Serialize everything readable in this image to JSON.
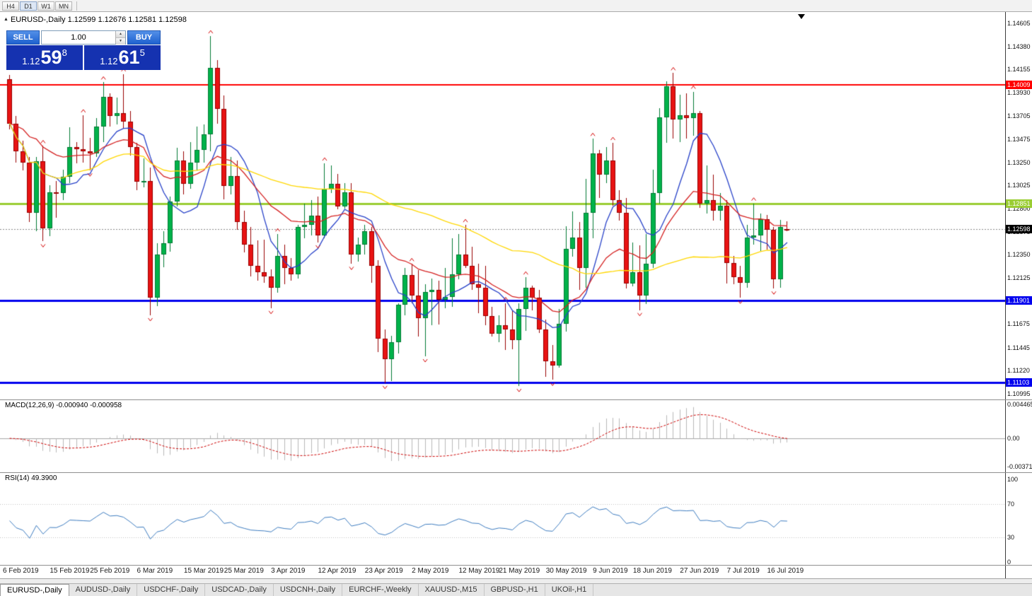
{
  "toolbar": {
    "timeframes": [
      "H4",
      "D1",
      "W1",
      "MN"
    ],
    "active": "D1"
  },
  "header": {
    "symbol": "EURUSD-,Daily",
    "ohlc_text": "1.12599 1.12676 1.12581 1.12598"
  },
  "icons": {
    "spinner_up": "▲",
    "spinner_down": "▼",
    "chart_marker": "▲"
  },
  "trade_panel": {
    "sell_label": "SELL",
    "buy_label": "BUY",
    "volume": "1.00",
    "sell_price": {
      "prefix": "1.12",
      "big": "59",
      "sup": "8"
    },
    "buy_price": {
      "prefix": "1.12",
      "big": "61",
      "sup": "5"
    }
  },
  "tabs": {
    "active_index": 0,
    "items": [
      "EURUSD-,Daily",
      "AUDUSD-,Daily",
      "USDCHF-,Daily",
      "USDCAD-,Daily",
      "USDCNH-,Daily",
      "EURCHF-,Weekly",
      "XAUUSD-,M15",
      "GBPUSD-,H1",
      "UKOil-,H1"
    ]
  },
  "colors": {
    "candle_up": "#00b24a",
    "candle_up_border": "#007a33",
    "candle_down": "#e81313",
    "candle_down_border": "#990000",
    "macd_hist": "#b9b9b9",
    "macd_signal": "#cc0000",
    "rsi_line": "#3c7bbf",
    "trade_button_blue": "#1e61cf",
    "trade_price_navy": "#1532b0"
  },
  "chart_data": {
    "type": "candlestick",
    "symbol": "EURUSD-",
    "timeframe": "Daily",
    "title": "EURUSD-,Daily",
    "current_bid": "1.12598",
    "y_range": [
      1.10995,
      1.14605
    ],
    "y_axis_ticks": [
      "1.14605",
      "1.14380",
      "1.14155",
      "1.13930",
      "1.13705",
      "1.13475",
      "1.13250",
      "1.13025",
      "1.12800",
      "1.12575",
      "1.12350",
      "1.12125",
      "1.11900",
      "1.11675",
      "1.11445",
      "1.11220",
      "1.10995"
    ],
    "x_axis_labels": [
      {
        "label": "6 Feb 2019",
        "i": 0
      },
      {
        "label": "15 Feb 2019",
        "i": 7
      },
      {
        "label": "25 Feb 2019",
        "i": 13
      },
      {
        "label": "6 Mar 2019",
        "i": 20
      },
      {
        "label": "15 Mar 2019",
        "i": 27
      },
      {
        "label": "25 Mar 2019",
        "i": 33
      },
      {
        "label": "3 Apr 2019",
        "i": 40
      },
      {
        "label": "12 Apr 2019",
        "i": 47
      },
      {
        "label": "23 Apr 2019",
        "i": 54
      },
      {
        "label": "2 May 2019",
        "i": 61
      },
      {
        "label": "12 May 2019",
        "i": 68
      },
      {
        "label": "21 May 2019",
        "i": 74
      },
      {
        "label": "30 May 2019",
        "i": 81
      },
      {
        "label": "9 Jun 2019",
        "i": 88
      },
      {
        "label": "18 Jun 2019",
        "i": 94
      },
      {
        "label": "27 Jun 2019",
        "i": 101
      },
      {
        "label": "7 Jul 2019",
        "i": 108
      },
      {
        "label": "16 Jul 2019",
        "i": 114
      }
    ],
    "horizontal_levels": [
      {
        "value": 1.14009,
        "label": "1.14009",
        "color": "#ff0000",
        "width": 2,
        "style": "solid"
      },
      {
        "value": 1.12851,
        "label": "1.12851",
        "color": "#9acd32",
        "width": 3,
        "style": "solid"
      },
      {
        "value": 1.12598,
        "label": "1.12598",
        "color": "#888888",
        "width": 1,
        "style": "dot",
        "label_bg": "#000000"
      },
      {
        "value": 1.11901,
        "label": "1.11901",
        "color": "#0000ee",
        "width": 3,
        "style": "solid"
      },
      {
        "value": 1.11103,
        "label": "1.11103",
        "color": "#0000ee",
        "width": 3,
        "style": "solid"
      }
    ],
    "moving_averages": [
      {
        "method": "sma",
        "period": 8,
        "color": "#2741c8"
      },
      {
        "method": "ema",
        "period": 21,
        "color": "#d42020"
      },
      {
        "method": "sma",
        "period": 55,
        "color": "#ffd700"
      }
    ],
    "fractals_color": "#d40000",
    "indicators": [
      {
        "name": "MACD",
        "params": [
          12,
          26,
          9
        ],
        "label": "MACD(12,26,9) -0.000940 -0.000958",
        "scale": [
          "0.004465",
          "0.00",
          "-0.003715"
        ]
      },
      {
        "name": "RSI",
        "params": [
          14
        ],
        "label": "RSI(14) 49.3900",
        "scale": [
          "100",
          "70",
          "30",
          "0"
        ],
        "bands": [
          70,
          30
        ]
      }
    ],
    "ohlc": [
      [
        1.1406,
        1.141,
        1.1357,
        1.1363
      ],
      [
        1.1363,
        1.137,
        1.1325,
        1.1336
      ],
      [
        1.1336,
        1.1346,
        1.1317,
        1.1325
      ],
      [
        1.1325,
        1.133,
        1.1267,
        1.1276
      ],
      [
        1.1276,
        1.133,
        1.1258,
        1.1326
      ],
      [
        1.1326,
        1.1341,
        1.1248,
        1.1261
      ],
      [
        1.1261,
        1.1303,
        1.1253,
        1.1296
      ],
      [
        1.1296,
        1.1307,
        1.1271,
        1.1295
      ],
      [
        1.1295,
        1.1318,
        1.1288,
        1.1311
      ],
      [
        1.1311,
        1.1359,
        1.1305,
        1.134
      ],
      [
        1.134,
        1.1345,
        1.1324,
        1.1338
      ],
      [
        1.1338,
        1.1371,
        1.1325,
        1.1336
      ],
      [
        1.1336,
        1.1349,
        1.1317,
        1.1334
      ],
      [
        1.1334,
        1.1368,
        1.133,
        1.136
      ],
      [
        1.136,
        1.1403,
        1.1345,
        1.1389
      ],
      [
        1.1389,
        1.1392,
        1.136,
        1.137
      ],
      [
        1.137,
        1.1388,
        1.1362,
        1.1373
      ],
      [
        1.1373,
        1.1411,
        1.1358,
        1.1365
      ],
      [
        1.1365,
        1.1375,
        1.1332,
        1.134
      ],
      [
        1.134,
        1.1344,
        1.1298,
        1.1306
      ],
      [
        1.1306,
        1.1329,
        1.1301,
        1.1307
      ],
      [
        1.1307,
        1.132,
        1.1176,
        1.1193
      ],
      [
        1.1193,
        1.1246,
        1.1185,
        1.1235
      ],
      [
        1.1235,
        1.1258,
        1.1223,
        1.1246
      ],
      [
        1.1246,
        1.1292,
        1.1238,
        1.1287
      ],
      [
        1.1287,
        1.1339,
        1.1282,
        1.1327
      ],
      [
        1.1327,
        1.1336,
        1.1294,
        1.1304
      ],
      [
        1.1304,
        1.1345,
        1.1299,
        1.1325
      ],
      [
        1.1325,
        1.136,
        1.1317,
        1.1337
      ],
      [
        1.1337,
        1.1362,
        1.1325,
        1.1352
      ],
      [
        1.1352,
        1.1448,
        1.1336,
        1.1417
      ],
      [
        1.1417,
        1.1425,
        1.1363,
        1.1377
      ],
      [
        1.1377,
        1.139,
        1.1289,
        1.1302
      ],
      [
        1.1302,
        1.133,
        1.1294,
        1.1312
      ],
      [
        1.1312,
        1.1327,
        1.1259,
        1.1267
      ],
      [
        1.1267,
        1.1278,
        1.1237,
        1.1245
      ],
      [
        1.1245,
        1.1262,
        1.1214,
        1.1224
      ],
      [
        1.1224,
        1.1249,
        1.121,
        1.1218
      ],
      [
        1.1218,
        1.125,
        1.1208,
        1.1214
      ],
      [
        1.1214,
        1.1221,
        1.1183,
        1.1203
      ],
      [
        1.1203,
        1.1255,
        1.1198,
        1.1234
      ],
      [
        1.1234,
        1.1245,
        1.1206,
        1.1222
      ],
      [
        1.1222,
        1.1232,
        1.121,
        1.1216
      ],
      [
        1.1216,
        1.1264,
        1.1212,
        1.1262
      ],
      [
        1.1262,
        1.1285,
        1.1251,
        1.1264
      ],
      [
        1.1264,
        1.1288,
        1.1254,
        1.1273
      ],
      [
        1.1273,
        1.1292,
        1.1247,
        1.1254
      ],
      [
        1.1254,
        1.1324,
        1.1251,
        1.1299
      ],
      [
        1.1299,
        1.1322,
        1.1295,
        1.1304
      ],
      [
        1.1304,
        1.1314,
        1.1279,
        1.1282
      ],
      [
        1.1282,
        1.1305,
        1.128,
        1.1296
      ],
      [
        1.1296,
        1.1305,
        1.1226,
        1.1235
      ],
      [
        1.1235,
        1.1252,
        1.1228,
        1.1245
      ],
      [
        1.1245,
        1.1264,
        1.1235,
        1.1258
      ],
      [
        1.1258,
        1.1262,
        1.1208,
        1.1224
      ],
      [
        1.1224,
        1.123,
        1.114,
        1.1153
      ],
      [
        1.1153,
        1.1162,
        1.111,
        1.1133
      ],
      [
        1.1133,
        1.1156,
        1.1112,
        1.115
      ],
      [
        1.115,
        1.1188,
        1.1139,
        1.1186
      ],
      [
        1.1186,
        1.1222,
        1.1176,
        1.1215
      ],
      [
        1.1215,
        1.1226,
        1.1188,
        1.1195
      ],
      [
        1.1195,
        1.122,
        1.1155,
        1.1173
      ],
      [
        1.1173,
        1.1206,
        1.1136,
        1.1199
      ],
      [
        1.1199,
        1.1212,
        1.1166,
        1.1201
      ],
      [
        1.1201,
        1.121,
        1.1167,
        1.1191
      ],
      [
        1.1191,
        1.1222,
        1.1183,
        1.1194
      ],
      [
        1.1194,
        1.1251,
        1.1184,
        1.1216
      ],
      [
        1.1216,
        1.1255,
        1.1211,
        1.1235
      ],
      [
        1.1235,
        1.1264,
        1.1222,
        1.1224
      ],
      [
        1.1224,
        1.1243,
        1.1201,
        1.1206
      ],
      [
        1.1206,
        1.1226,
        1.1178,
        1.1203
      ],
      [
        1.1203,
        1.1224,
        1.1166,
        1.1175
      ],
      [
        1.1175,
        1.1184,
        1.1155,
        1.1158
      ],
      [
        1.1158,
        1.1176,
        1.115,
        1.1166
      ],
      [
        1.1166,
        1.1188,
        1.1142,
        1.1162
      ],
      [
        1.1162,
        1.118,
        1.1143,
        1.1152
      ],
      [
        1.1152,
        1.1188,
        1.1107,
        1.1182
      ],
      [
        1.1182,
        1.1213,
        1.1161,
        1.1203
      ],
      [
        1.1203,
        1.1205,
        1.1181,
        1.1193
      ],
      [
        1.1193,
        1.1201,
        1.1159,
        1.1162
      ],
      [
        1.1162,
        1.1172,
        1.1116,
        1.1131
      ],
      [
        1.1131,
        1.1147,
        1.1113,
        1.1127
      ],
      [
        1.1127,
        1.1182,
        1.1125,
        1.1168
      ],
      [
        1.1168,
        1.1263,
        1.116,
        1.1241
      ],
      [
        1.1241,
        1.1277,
        1.1233,
        1.1252
      ],
      [
        1.1252,
        1.1267,
        1.1201,
        1.1222
      ],
      [
        1.1222,
        1.1309,
        1.1203,
        1.1276
      ],
      [
        1.1276,
        1.1348,
        1.1251,
        1.1334
      ],
      [
        1.1334,
        1.1337,
        1.129,
        1.1313
      ],
      [
        1.1313,
        1.134,
        1.1305,
        1.1327
      ],
      [
        1.1327,
        1.1344,
        1.1283,
        1.1288
      ],
      [
        1.1288,
        1.1298,
        1.1268,
        1.1276
      ],
      [
        1.1276,
        1.129,
        1.1202,
        1.1207
      ],
      [
        1.1207,
        1.1247,
        1.1204,
        1.1218
      ],
      [
        1.1218,
        1.1244,
        1.1181,
        1.1195
      ],
      [
        1.1195,
        1.1255,
        1.1187,
        1.1226
      ],
      [
        1.1226,
        1.1318,
        1.1222,
        1.1295
      ],
      [
        1.1295,
        1.1378,
        1.1285,
        1.1369
      ],
      [
        1.1369,
        1.1404,
        1.1344,
        1.1399
      ],
      [
        1.1399,
        1.1412,
        1.1348,
        1.1367
      ],
      [
        1.1367,
        1.1391,
        1.1345,
        1.1371
      ],
      [
        1.1371,
        1.1392,
        1.1348,
        1.1368
      ],
      [
        1.1368,
        1.1394,
        1.1351,
        1.1373
      ],
      [
        1.1373,
        1.1375,
        1.1281,
        1.1285
      ],
      [
        1.1285,
        1.1322,
        1.1275,
        1.1288
      ],
      [
        1.1288,
        1.1313,
        1.1268,
        1.1278
      ],
      [
        1.1278,
        1.1295,
        1.1268,
        1.1283
      ],
      [
        1.1283,
        1.1288,
        1.1207,
        1.1227
      ],
      [
        1.1227,
        1.1234,
        1.1206,
        1.1213
      ],
      [
        1.1213,
        1.1224,
        1.1193,
        1.1208
      ],
      [
        1.1208,
        1.1264,
        1.1203,
        1.1252
      ],
      [
        1.1252,
        1.1285,
        1.1245,
        1.1254
      ],
      [
        1.1254,
        1.1275,
        1.1239,
        1.127
      ],
      [
        1.127,
        1.1274,
        1.124,
        1.1259
      ],
      [
        1.1259,
        1.1262,
        1.1202,
        1.1211
      ],
      [
        1.1211,
        1.1269,
        1.1203,
        1.1262
      ],
      [
        1.12599,
        1.12676,
        1.12581,
        1.12598
      ]
    ]
  }
}
